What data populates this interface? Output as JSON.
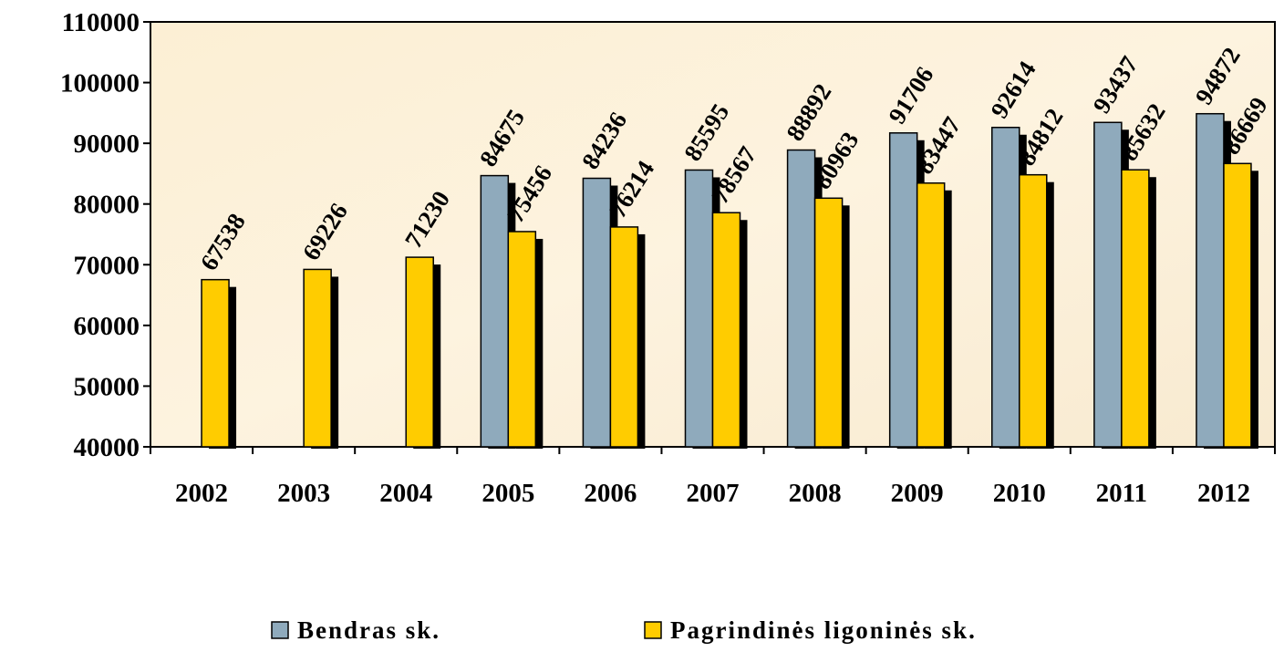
{
  "chart_data": {
    "type": "bar",
    "categories": [
      "2002",
      "2003",
      "2004",
      "2005",
      "2006",
      "2007",
      "2008",
      "2009",
      "2010",
      "2011",
      "2012"
    ],
    "series": [
      {
        "name": "Bendras sk.",
        "color": "#8faabc",
        "values": [
          null,
          null,
          null,
          84675,
          84236,
          85595,
          88892,
          91706,
          92614,
          93437,
          94872
        ]
      },
      {
        "name": "Pagrindinės ligoninės sk.",
        "color": "#ffcc00",
        "values": [
          67538,
          69226,
          71230,
          75456,
          76214,
          78567,
          80963,
          83447,
          84812,
          85632,
          86669
        ]
      }
    ],
    "ylim": [
      40000,
      110000
    ],
    "yticks": [
      40000,
      50000,
      60000,
      70000,
      80000,
      90000,
      100000,
      110000
    ],
    "legend": "bottom"
  }
}
